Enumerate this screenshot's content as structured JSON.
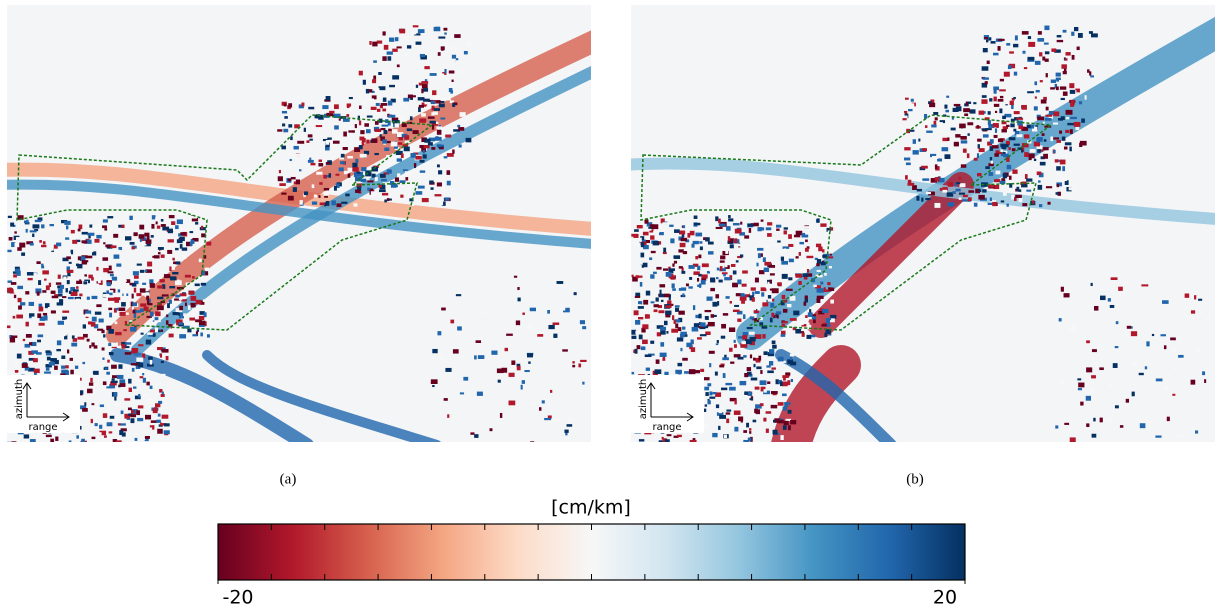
{
  "panels": [
    {
      "caption": "(a)",
      "inset": {
        "vertical": "azimuth",
        "horizontal": "range"
      }
    },
    {
      "caption": "(b)",
      "inset": {
        "vertical": "azimuth",
        "horizontal": "range"
      }
    }
  ],
  "colorbar": {
    "label": "[cm/km]",
    "lim": [
      -20,
      20
    ],
    "ticks": [
      -20,
      20
    ],
    "colormap": [
      "#67001f",
      "#b2182b",
      "#d6604d",
      "#f4a582",
      "#fddbc7",
      "#f7f7f7",
      "#d1e5f0",
      "#92c5de",
      "#4393c3",
      "#2166ac",
      "#053061"
    ]
  }
}
